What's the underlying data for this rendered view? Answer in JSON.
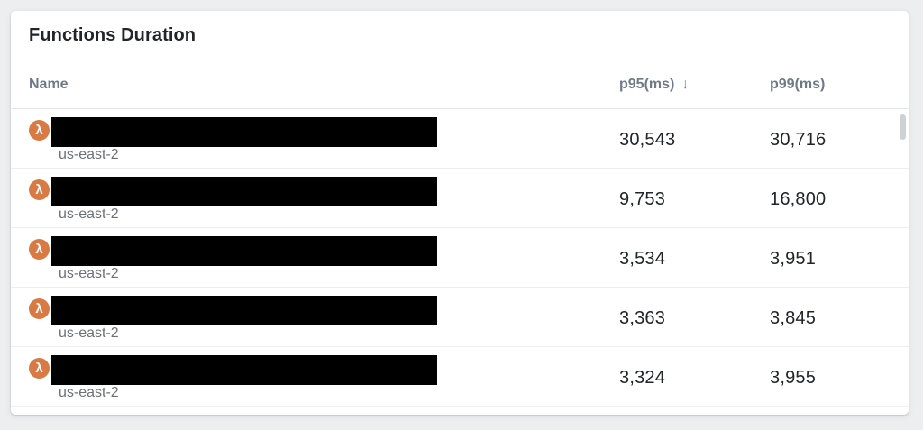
{
  "widget": {
    "title": "Functions Duration",
    "columns": {
      "name": "Name",
      "p95": "p95(ms)",
      "p99": "p99(ms)",
      "sort_icon": "↓",
      "sorted_by": "p95(ms)",
      "sort_direction": "desc"
    },
    "row_icon_glyph": "λ",
    "rows": [
      {
        "name_redacted": true,
        "region": "us-east-2",
        "p95": "30,543",
        "p99": "30,716"
      },
      {
        "name_redacted": true,
        "region": "us-east-2",
        "p95": "9,753",
        "p99": "16,800"
      },
      {
        "name_redacted": true,
        "region": "us-east-2",
        "p95": "3,534",
        "p99": "3,951"
      },
      {
        "name_redacted": true,
        "region": "us-east-2",
        "p95": "3,363",
        "p99": "3,845"
      },
      {
        "name_redacted": true,
        "region": "us-east-2",
        "p95": "3,324",
        "p99": "3,955"
      }
    ]
  },
  "chart_data": {
    "type": "table",
    "title": "Functions Duration",
    "columns": [
      "Name",
      "p95(ms)",
      "p99(ms)"
    ],
    "rows": [
      [
        "[redacted] (us-east-2)",
        30543,
        30716
      ],
      [
        "[redacted] (us-east-2)",
        9753,
        16800
      ],
      [
        "[redacted] (us-east-2)",
        3534,
        3951
      ],
      [
        "[redacted] (us-east-2)",
        3363,
        3845
      ],
      [
        "[redacted] (us-east-2)",
        3324,
        3955
      ]
    ],
    "sort": {
      "column": "p95(ms)",
      "direction": "desc"
    }
  },
  "colors": {
    "page_bg": "#eceef0",
    "lambda_orange": "#d97a45",
    "header_text": "#6f7a89",
    "region_text": "#6b7177",
    "scrollbar": "#ccd1d6"
  }
}
